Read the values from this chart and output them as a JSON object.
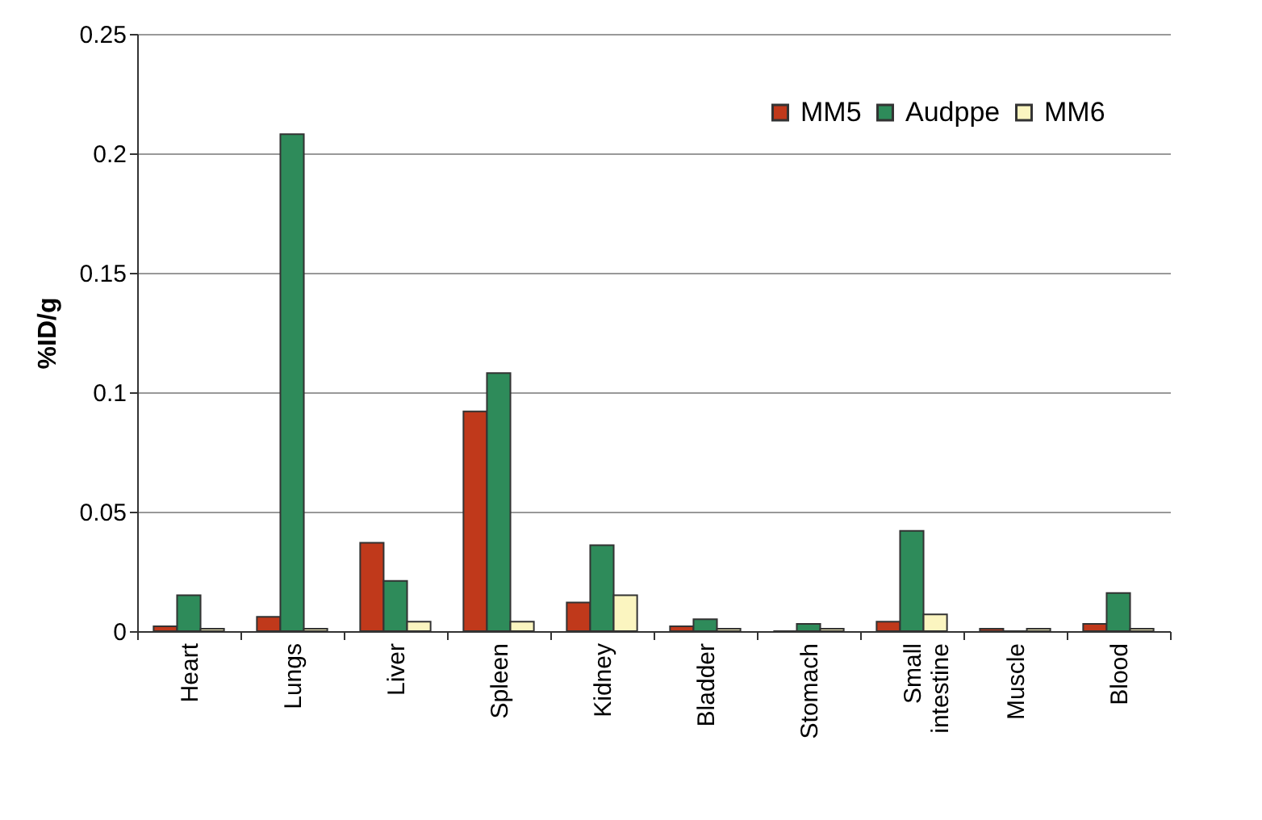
{
  "chart_data": {
    "type": "bar",
    "ylabel": "%ID/g",
    "categories": [
      "Heart",
      "Lungs",
      "Liver",
      "Spleen",
      "Kidney",
      "Bladder",
      "Stomach",
      "Small intestine",
      "Muscle",
      "Blood"
    ],
    "series": [
      {
        "name": "MM5",
        "color": "#c0391b",
        "values": [
          0.002,
          0.006,
          0.037,
          0.092,
          0.012,
          0.002,
          0,
          0.004,
          0.001,
          0.003
        ]
      },
      {
        "name": "Audppe",
        "color": "#2e8b5a",
        "values": [
          0.015,
          0.208,
          0.021,
          0.108,
          0.036,
          0.005,
          0.003,
          0.042,
          0,
          0.016
        ]
      },
      {
        "name": "MM6",
        "color": "#fbf5c0",
        "values": [
          0.001,
          0.001,
          0.004,
          0.004,
          0.015,
          0.001,
          0.001,
          0.007,
          0.001,
          0.001
        ]
      }
    ],
    "ylim": [
      0,
      0.25
    ],
    "yticks": [
      0,
      0.05,
      0.1,
      0.15,
      0.2,
      0.25
    ],
    "grid": "y",
    "legend": "top right"
  }
}
